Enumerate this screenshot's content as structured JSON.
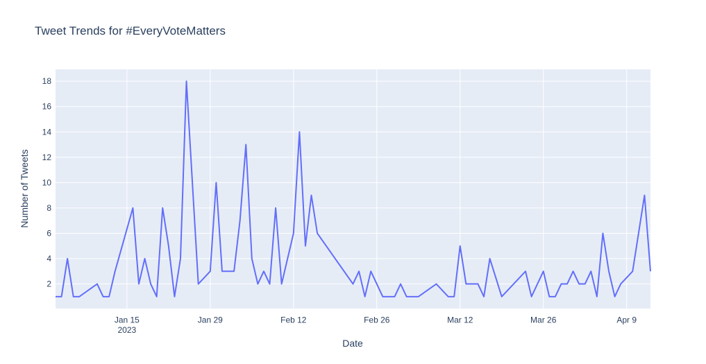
{
  "chart_data": {
    "type": "line",
    "title": "Tweet Trends for #EveryVoteMatters",
    "x_label": "Date",
    "y_label": "Number of Tweets",
    "grid": true,
    "xlim": [
      "2023-01-03",
      "2023-04-13"
    ],
    "xticks": [
      {
        "value": "2023-01-15",
        "label": "Jan 15\n2023"
      },
      {
        "value": "2023-01-29",
        "label": "Jan 29"
      },
      {
        "value": "2023-02-12",
        "label": "Feb 12"
      },
      {
        "value": "2023-02-26",
        "label": "Feb 26"
      },
      {
        "value": "2023-03-12",
        "label": "Mar 12"
      },
      {
        "value": "2023-03-26",
        "label": "Mar 26"
      },
      {
        "value": "2023-04-09",
        "label": "Apr 9"
      }
    ],
    "ylim": [
      0.06,
      18.94
    ],
    "yticks": [
      2,
      4,
      6,
      8,
      10,
      12,
      14,
      16,
      18
    ],
    "x": [
      "2023-01-03",
      "2023-01-04",
      "2023-01-05",
      "2023-01-06",
      "2023-01-07",
      "2023-01-10",
      "2023-01-11",
      "2023-01-12",
      "2023-01-13",
      "2023-01-16",
      "2023-01-17",
      "2023-01-18",
      "2023-01-19",
      "2023-01-20",
      "2023-01-21",
      "2023-01-22",
      "2023-01-23",
      "2023-01-24",
      "2023-01-25",
      "2023-01-27",
      "2023-01-29",
      "2023-01-30",
      "2023-01-31",
      "2023-02-02",
      "2023-02-03",
      "2023-02-04",
      "2023-02-05",
      "2023-02-06",
      "2023-02-07",
      "2023-02-08",
      "2023-02-09",
      "2023-02-10",
      "2023-02-12",
      "2023-02-13",
      "2023-02-14",
      "2023-02-15",
      "2023-02-16",
      "2023-02-22",
      "2023-02-23",
      "2023-02-24",
      "2023-02-25",
      "2023-02-27",
      "2023-03-01",
      "2023-03-02",
      "2023-03-03",
      "2023-03-05",
      "2023-03-08",
      "2023-03-10",
      "2023-03-11",
      "2023-03-12",
      "2023-03-13",
      "2023-03-15",
      "2023-03-16",
      "2023-03-17",
      "2023-03-19",
      "2023-03-23",
      "2023-03-24",
      "2023-03-26",
      "2023-03-27",
      "2023-03-28",
      "2023-03-29",
      "2023-03-30",
      "2023-03-31",
      "2023-04-01",
      "2023-04-02",
      "2023-04-03",
      "2023-04-04",
      "2023-04-05",
      "2023-04-06",
      "2023-04-07",
      "2023-04-08",
      "2023-04-10",
      "2023-04-12",
      "2023-04-13"
    ],
    "series": [
      {
        "color": "#636efa",
        "values": [
          1,
          1,
          4,
          1,
          1,
          2,
          1,
          1,
          3,
          8,
          2,
          4,
          2,
          1,
          8,
          5,
          1,
          4,
          18,
          2,
          3,
          10,
          3,
          3,
          7,
          13,
          4,
          2,
          3,
          2,
          8,
          2,
          6,
          14,
          5,
          9,
          6,
          2,
          3,
          1,
          3,
          1,
          1,
          2,
          1,
          1,
          2,
          1,
          1,
          5,
          2,
          2,
          1,
          4,
          1,
          3,
          1,
          3,
          1,
          1,
          2,
          2,
          3,
          2,
          2,
          3,
          1,
          6,
          3,
          1,
          2,
          3,
          9,
          3
        ]
      }
    ]
  }
}
